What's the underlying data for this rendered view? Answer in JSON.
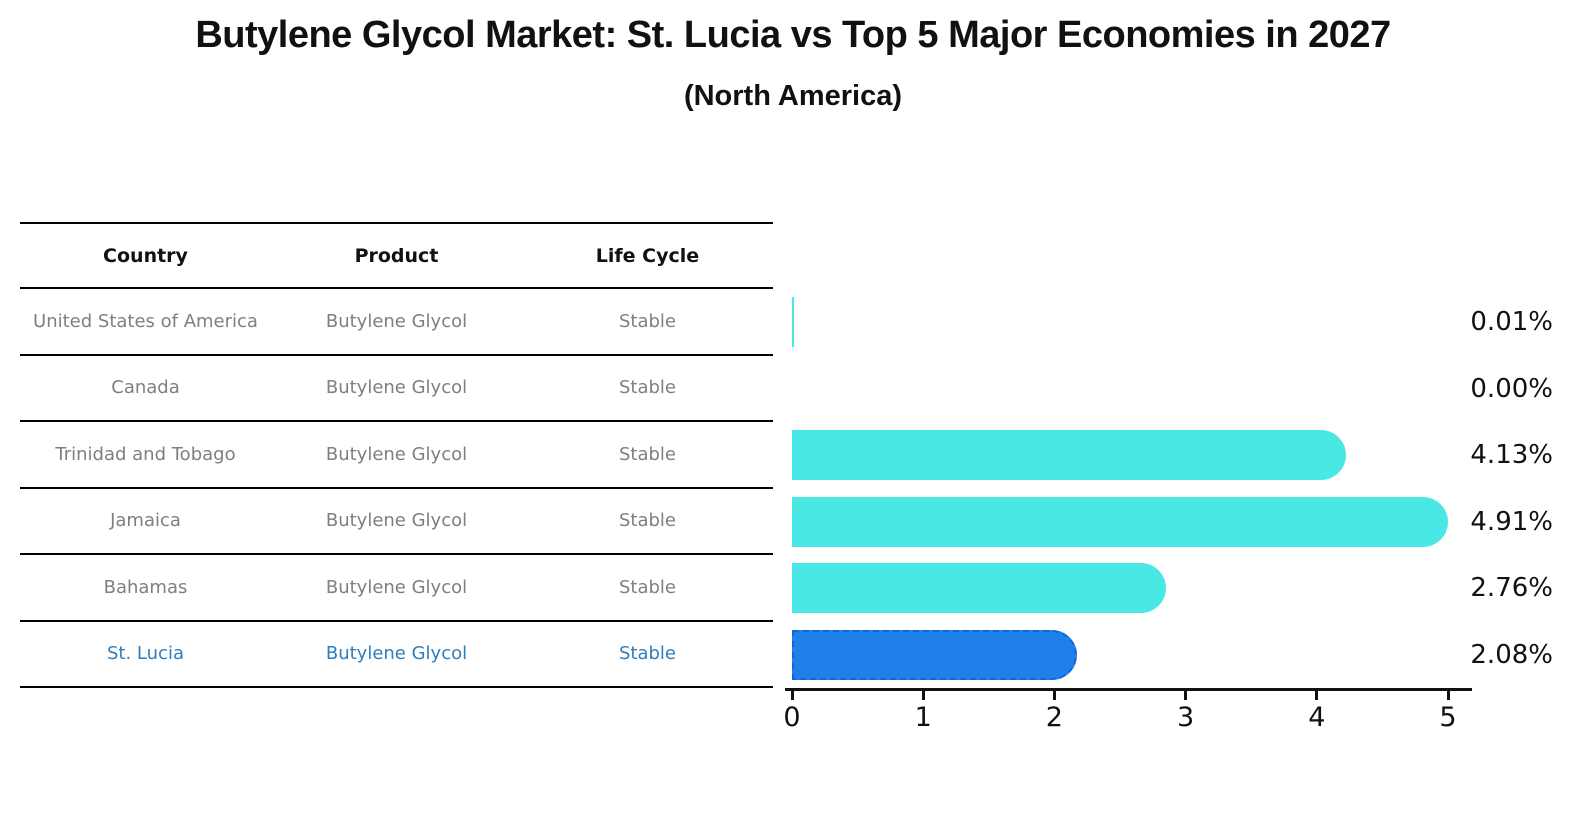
{
  "title": "Butylene Glycol Market: St. Lucia vs Top 5 Major Economies in 2027",
  "subtitle": "(North America)",
  "table": {
    "headers": [
      "Country",
      "Product",
      "Life Cycle"
    ],
    "rows": [
      {
        "country": "United States of America",
        "product": "Butylene Glycol",
        "life_cycle": "Stable",
        "highlight": false
      },
      {
        "country": "Canada",
        "product": "Butylene Glycol",
        "life_cycle": "Stable",
        "highlight": false
      },
      {
        "country": "Trinidad and Tobago",
        "product": "Butylene Glycol",
        "life_cycle": "Stable",
        "highlight": false
      },
      {
        "country": "Jamaica",
        "product": "Butylene Glycol",
        "life_cycle": "Stable",
        "highlight": false
      },
      {
        "country": "Bahamas",
        "product": "Butylene Glycol",
        "life_cycle": "Stable",
        "highlight": false
      },
      {
        "country": "St. Lucia",
        "product": "Butylene Glycol",
        "life_cycle": "Stable",
        "highlight": true
      }
    ]
  },
  "chart_data": {
    "type": "bar",
    "orientation": "horizontal",
    "title": "Butylene Glycol Market: St. Lucia vs Top 5 Major Economies in 2027",
    "subtitle": "(North America)",
    "categories": [
      "United States of America",
      "Canada",
      "Trinidad and Tobago",
      "Jamaica",
      "Bahamas",
      "St. Lucia"
    ],
    "values": [
      0.01,
      0.0,
      4.13,
      4.91,
      2.76,
      2.08
    ],
    "value_labels": [
      "0.01%",
      "0.00%",
      "4.13%",
      "4.91%",
      "2.76%",
      "2.08%"
    ],
    "xlim": [
      0,
      5
    ],
    "xticks": [
      "0",
      "1",
      "2",
      "3",
      "4",
      "5"
    ],
    "grid": false,
    "legend": false,
    "highlight_index": 5,
    "bar_color": "#4ae8e4",
    "highlight_bar_color": "#1e80e8",
    "highlight_border_color": "#1565d0",
    "highlight_text_color": "#2e7ebd",
    "row_text_color": "#7f7f7f"
  }
}
